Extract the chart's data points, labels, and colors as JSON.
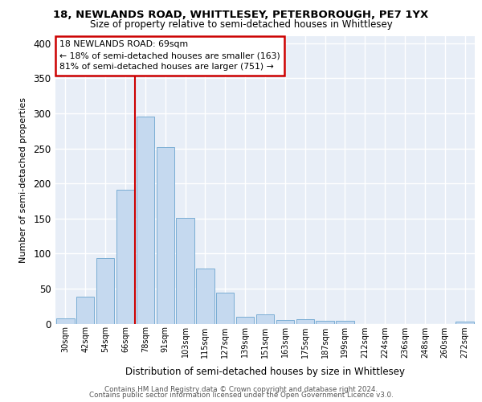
{
  "title1": "18, NEWLANDS ROAD, WHITTLESEY, PETERBOROUGH, PE7 1YX",
  "title2": "Size of property relative to semi-detached houses in Whittlesey",
  "xlabel": "Distribution of semi-detached houses by size in Whittlesey",
  "ylabel": "Number of semi-detached properties",
  "categories": [
    "30sqm",
    "42sqm",
    "54sqm",
    "66sqm",
    "78sqm",
    "91sqm",
    "103sqm",
    "115sqm",
    "127sqm",
    "139sqm",
    "151sqm",
    "163sqm",
    "175sqm",
    "187sqm",
    "199sqm",
    "212sqm",
    "224sqm",
    "236sqm",
    "248sqm",
    "260sqm",
    "272sqm"
  ],
  "values": [
    7,
    38,
    93,
    191,
    295,
    252,
    151,
    79,
    44,
    10,
    13,
    5,
    6,
    4,
    4,
    0,
    0,
    0,
    0,
    0,
    3
  ],
  "bar_color": "#c5d9ef",
  "bar_edge_color": "#7aadd4",
  "annotation_title": "18 NEWLANDS ROAD: 69sqm",
  "annotation_line1": "← 18% of semi-detached houses are smaller (163)",
  "annotation_line2": "81% of semi-detached houses are larger (751) →",
  "vline_color": "#cc0000",
  "vline_x": 3.5,
  "ylim": [
    0,
    410
  ],
  "yticks": [
    0,
    50,
    100,
    150,
    200,
    250,
    300,
    350,
    400
  ],
  "fig_bg": "#ffffff",
  "plot_bg": "#e8eef7",
  "grid_color": "#ffffff",
  "footer1": "Contains HM Land Registry data © Crown copyright and database right 2024.",
  "footer2": "Contains public sector information licensed under the Open Government Licence v3.0."
}
